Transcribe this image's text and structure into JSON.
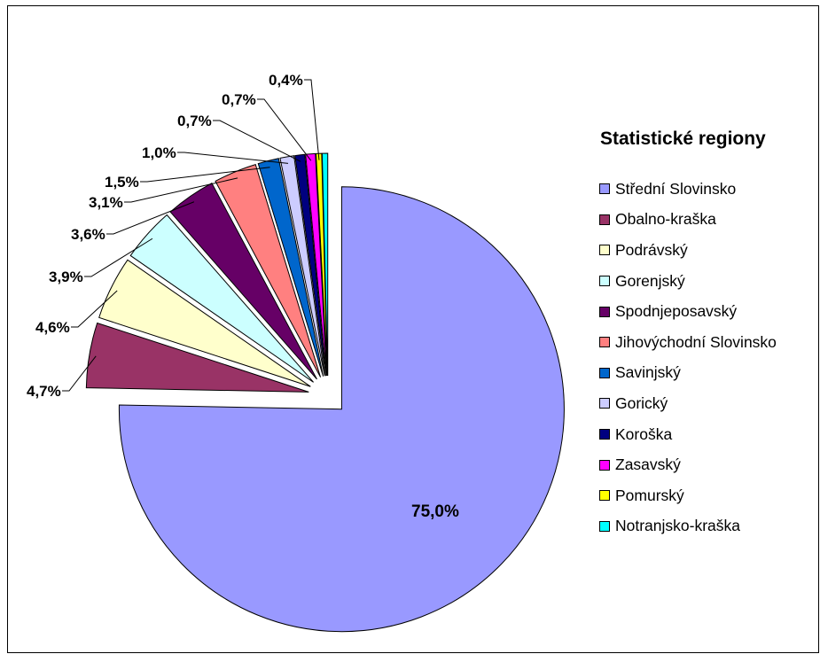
{
  "chart_data": {
    "type": "pie",
    "legend_title": "Statistické regiony",
    "legend_position": "right",
    "categories": [
      "Střední Slovinsko",
      "Obalno-kraška",
      "Podrávský",
      "Gorenjský",
      "Spodnjeposavský",
      "Jihovýchodní Slovinsko",
      "Savinjský",
      "Gorický",
      "Koroška",
      "Zasavský",
      "Pomurský",
      "Notranjsko-kraška"
    ],
    "values": [
      75.0,
      4.7,
      4.6,
      3.9,
      3.6,
      3.1,
      1.5,
      1.0,
      0.7,
      0.7,
      0.4,
      0.4
    ],
    "data_labels": [
      "75,0%",
      "4,7%",
      "4,6%",
      "3,9%",
      "3,6%",
      "3,1%",
      "1,5%",
      "1,0%",
      "0,7%",
      "0,7%",
      "0,4%",
      ""
    ],
    "colors": [
      "#9999ff",
      "#993366",
      "#ffffcc",
      "#ccffff",
      "#660066",
      "#ff8080",
      "#0066cc",
      "#ccccff",
      "#000080",
      "#ff00ff",
      "#ffff00",
      "#00ffff"
    ]
  }
}
